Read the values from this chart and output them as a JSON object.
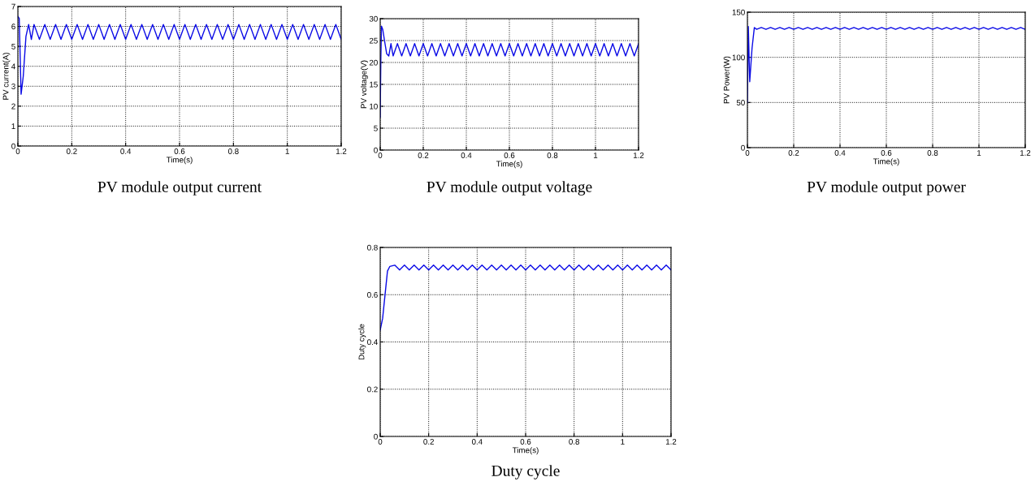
{
  "chart_data": [
    {
      "type": "line",
      "xlabel": "Time(s)",
      "ylabel": "PV current(A)",
      "annotations": [
        "PV module output current"
      ],
      "xlim": [
        0,
        1.2
      ],
      "ylim": [
        0,
        7
      ],
      "xticks": [
        0,
        0.2,
        0.4,
        0.6,
        0.8,
        1,
        1.2
      ],
      "yticks": [
        0,
        1,
        2,
        3,
        4,
        5,
        6,
        7
      ],
      "grid": true,
      "x": [
        0,
        0.005,
        0.012,
        0.02,
        0.03,
        0.04,
        0.05,
        0.06,
        0.08,
        0.1,
        0.12,
        0.14,
        0.16,
        0.18,
        0.2,
        0.22,
        0.24,
        0.26,
        0.28,
        0.3,
        0.32,
        0.34,
        0.36,
        0.38,
        0.4,
        0.42,
        0.44,
        0.46,
        0.48,
        0.5,
        0.52,
        0.54,
        0.56,
        0.58,
        0.6,
        0.62,
        0.64,
        0.66,
        0.68,
        0.7,
        0.72,
        0.74,
        0.76,
        0.78,
        0.8,
        0.82,
        0.84,
        0.86,
        0.88,
        0.9,
        0.92,
        0.94,
        0.96,
        0.98,
        1,
        1.02,
        1.04,
        1.06,
        1.08,
        1.1,
        1.12,
        1.14,
        1.16,
        1.18,
        1.2
      ],
      "series": [
        {
          "color": "#0a0ae6",
          "values": [
            6.5,
            6.4,
            2.6,
            3.5,
            5.5,
            6.1,
            5.35,
            6.1,
            5.35,
            6.1,
            5.35,
            6.1,
            5.35,
            6.1,
            5.35,
            6.1,
            5.35,
            6.1,
            5.35,
            6.1,
            5.35,
            6.1,
            5.35,
            6.1,
            5.35,
            6.1,
            5.35,
            6.1,
            5.35,
            6.1,
            5.35,
            6.1,
            5.35,
            6.1,
            5.35,
            6.1,
            5.35,
            6.1,
            5.35,
            6.1,
            5.35,
            6.1,
            5.35,
            6.1,
            5.35,
            6.1,
            5.35,
            6.1,
            5.35,
            6.1,
            5.35,
            6.1,
            5.35,
            6.1,
            5.35,
            6.1,
            5.35,
            6.1,
            5.35,
            6.1,
            5.35,
            6.1,
            5.35,
            6.1,
            5.35
          ]
        }
      ]
    },
    {
      "type": "line",
      "xlabel": "Time(s)",
      "ylabel": "PV voltage(V)",
      "annotations": [
        "PV module output voltage"
      ],
      "xlim": [
        0,
        1.2
      ],
      "ylim": [
        0,
        30
      ],
      "xticks": [
        0,
        0.2,
        0.4,
        0.6,
        0.8,
        1,
        1.2
      ],
      "yticks": [
        0,
        5,
        10,
        15,
        20,
        25,
        30
      ],
      "grid": true,
      "x": [
        0,
        0.003,
        0.006,
        0.012,
        0.02,
        0.03,
        0.04,
        0.05,
        0.06,
        0.08,
        0.1,
        0.12,
        0.14,
        0.16,
        0.18,
        0.2,
        0.22,
        0.24,
        0.26,
        0.28,
        0.3,
        0.32,
        0.34,
        0.36,
        0.38,
        0.4,
        0.42,
        0.44,
        0.46,
        0.48,
        0.5,
        0.52,
        0.54,
        0.56,
        0.58,
        0.6,
        0.62,
        0.64,
        0.66,
        0.68,
        0.7,
        0.72,
        0.74,
        0.76,
        0.78,
        0.8,
        0.82,
        0.84,
        0.86,
        0.88,
        0.9,
        0.92,
        0.94,
        0.96,
        0.98,
        1,
        1.02,
        1.04,
        1.06,
        1.08,
        1.1,
        1.12,
        1.14,
        1.16,
        1.18,
        1.2
      ],
      "series": [
        {
          "color": "#0a0ae6",
          "values": [
            7.5,
            21,
            28.3,
            27.5,
            25,
            22,
            21.5,
            24.3,
            21.5,
            24.3,
            21.5,
            24.3,
            21.5,
            24.3,
            21.5,
            24.3,
            21.5,
            24.3,
            21.5,
            24.3,
            21.5,
            24.3,
            21.5,
            24.3,
            21.5,
            24.3,
            21.5,
            24.3,
            21.5,
            24.3,
            21.5,
            24.3,
            21.5,
            24.3,
            21.5,
            24.3,
            21.5,
            24.3,
            21.5,
            24.3,
            21.5,
            24.3,
            21.5,
            24.3,
            21.5,
            24.3,
            21.5,
            24.3,
            21.5,
            24.3,
            21.5,
            24.3,
            21.5,
            24.3,
            21.5,
            24.3,
            21.5,
            24.3,
            21.5,
            24.3,
            21.5,
            24.3,
            21.5,
            24.3,
            21.5,
            24.3
          ]
        }
      ]
    },
    {
      "type": "line",
      "xlabel": "Time(s)",
      "ylabel": "PV Power(W)",
      "annotations": [
        "PV module output power"
      ],
      "xlim": [
        0,
        1.2
      ],
      "ylim": [
        0,
        150
      ],
      "xticks": [
        0,
        0.2,
        0.4,
        0.6,
        0.8,
        1,
        1.2
      ],
      "yticks": [
        0,
        50,
        100,
        150
      ],
      "grid": true,
      "x": [
        0,
        0.004,
        0.01,
        0.02,
        0.03,
        0.04,
        0.06,
        0.08,
        0.1,
        0.12,
        0.14,
        0.16,
        0.18,
        0.2,
        0.22,
        0.24,
        0.26,
        0.28,
        0.3,
        0.32,
        0.34,
        0.36,
        0.38,
        0.4,
        0.42,
        0.44,
        0.46,
        0.48,
        0.5,
        0.52,
        0.54,
        0.56,
        0.58,
        0.6,
        0.62,
        0.64,
        0.66,
        0.68,
        0.7,
        0.72,
        0.74,
        0.76,
        0.78,
        0.8,
        0.82,
        0.84,
        0.86,
        0.88,
        0.9,
        0.92,
        0.94,
        0.96,
        0.98,
        1,
        1.02,
        1.04,
        1.06,
        1.08,
        1.1,
        1.12,
        1.14,
        1.16,
        1.18,
        1.2
      ],
      "series": [
        {
          "color": "#0a0ae6",
          "values": [
            50,
            134,
            73,
            110,
            133,
            131,
            133,
            131,
            133,
            131,
            133,
            131,
            133,
            131,
            133,
            131,
            133,
            131,
            133,
            131,
            133,
            131,
            133,
            131,
            133,
            131,
            133,
            131,
            133,
            131,
            133,
            131,
            133,
            131,
            133,
            131,
            133,
            131,
            133,
            131,
            133,
            131,
            133,
            131,
            133,
            131,
            133,
            131,
            133,
            131,
            133,
            131,
            133,
            131,
            133,
            131,
            133,
            131,
            133,
            131,
            133,
            131,
            133,
            131
          ]
        }
      ]
    },
    {
      "type": "line",
      "xlabel": "Time(s)",
      "ylabel": "Duty cycle",
      "annotations": [
        "Duty cycle"
      ],
      "xlim": [
        0,
        1.2
      ],
      "ylim": [
        0,
        0.8
      ],
      "xticks": [
        0,
        0.2,
        0.4,
        0.6,
        0.8,
        1,
        1.2
      ],
      "yticks": [
        0,
        0.2,
        0.4,
        0.6,
        0.8
      ],
      "grid": true,
      "x": [
        0,
        0.01,
        0.03,
        0.04,
        0.06,
        0.08,
        0.1,
        0.12,
        0.14,
        0.16,
        0.18,
        0.2,
        0.22,
        0.24,
        0.26,
        0.28,
        0.3,
        0.32,
        0.34,
        0.36,
        0.38,
        0.4,
        0.42,
        0.44,
        0.46,
        0.48,
        0.5,
        0.52,
        0.54,
        0.56,
        0.58,
        0.6,
        0.62,
        0.64,
        0.66,
        0.68,
        0.7,
        0.72,
        0.74,
        0.76,
        0.78,
        0.8,
        0.82,
        0.84,
        0.86,
        0.88,
        0.9,
        0.92,
        0.94,
        0.96,
        0.98,
        1,
        1.02,
        1.04,
        1.06,
        1.08,
        1.1,
        1.12,
        1.14,
        1.16,
        1.18,
        1.2
      ],
      "series": [
        {
          "color": "#0a0ae6",
          "values": [
            0.45,
            0.5,
            0.7,
            0.72,
            0.725,
            0.705,
            0.725,
            0.705,
            0.725,
            0.705,
            0.725,
            0.705,
            0.725,
            0.705,
            0.725,
            0.705,
            0.725,
            0.705,
            0.725,
            0.705,
            0.725,
            0.705,
            0.725,
            0.705,
            0.725,
            0.705,
            0.725,
            0.705,
            0.725,
            0.705,
            0.725,
            0.705,
            0.725,
            0.705,
            0.725,
            0.705,
            0.725,
            0.705,
            0.725,
            0.705,
            0.725,
            0.705,
            0.725,
            0.705,
            0.725,
            0.705,
            0.725,
            0.705,
            0.725,
            0.705,
            0.725,
            0.705,
            0.725,
            0.705,
            0.725,
            0.705,
            0.725,
            0.705,
            0.725,
            0.705,
            0.725,
            0.705
          ]
        }
      ]
    }
  ]
}
